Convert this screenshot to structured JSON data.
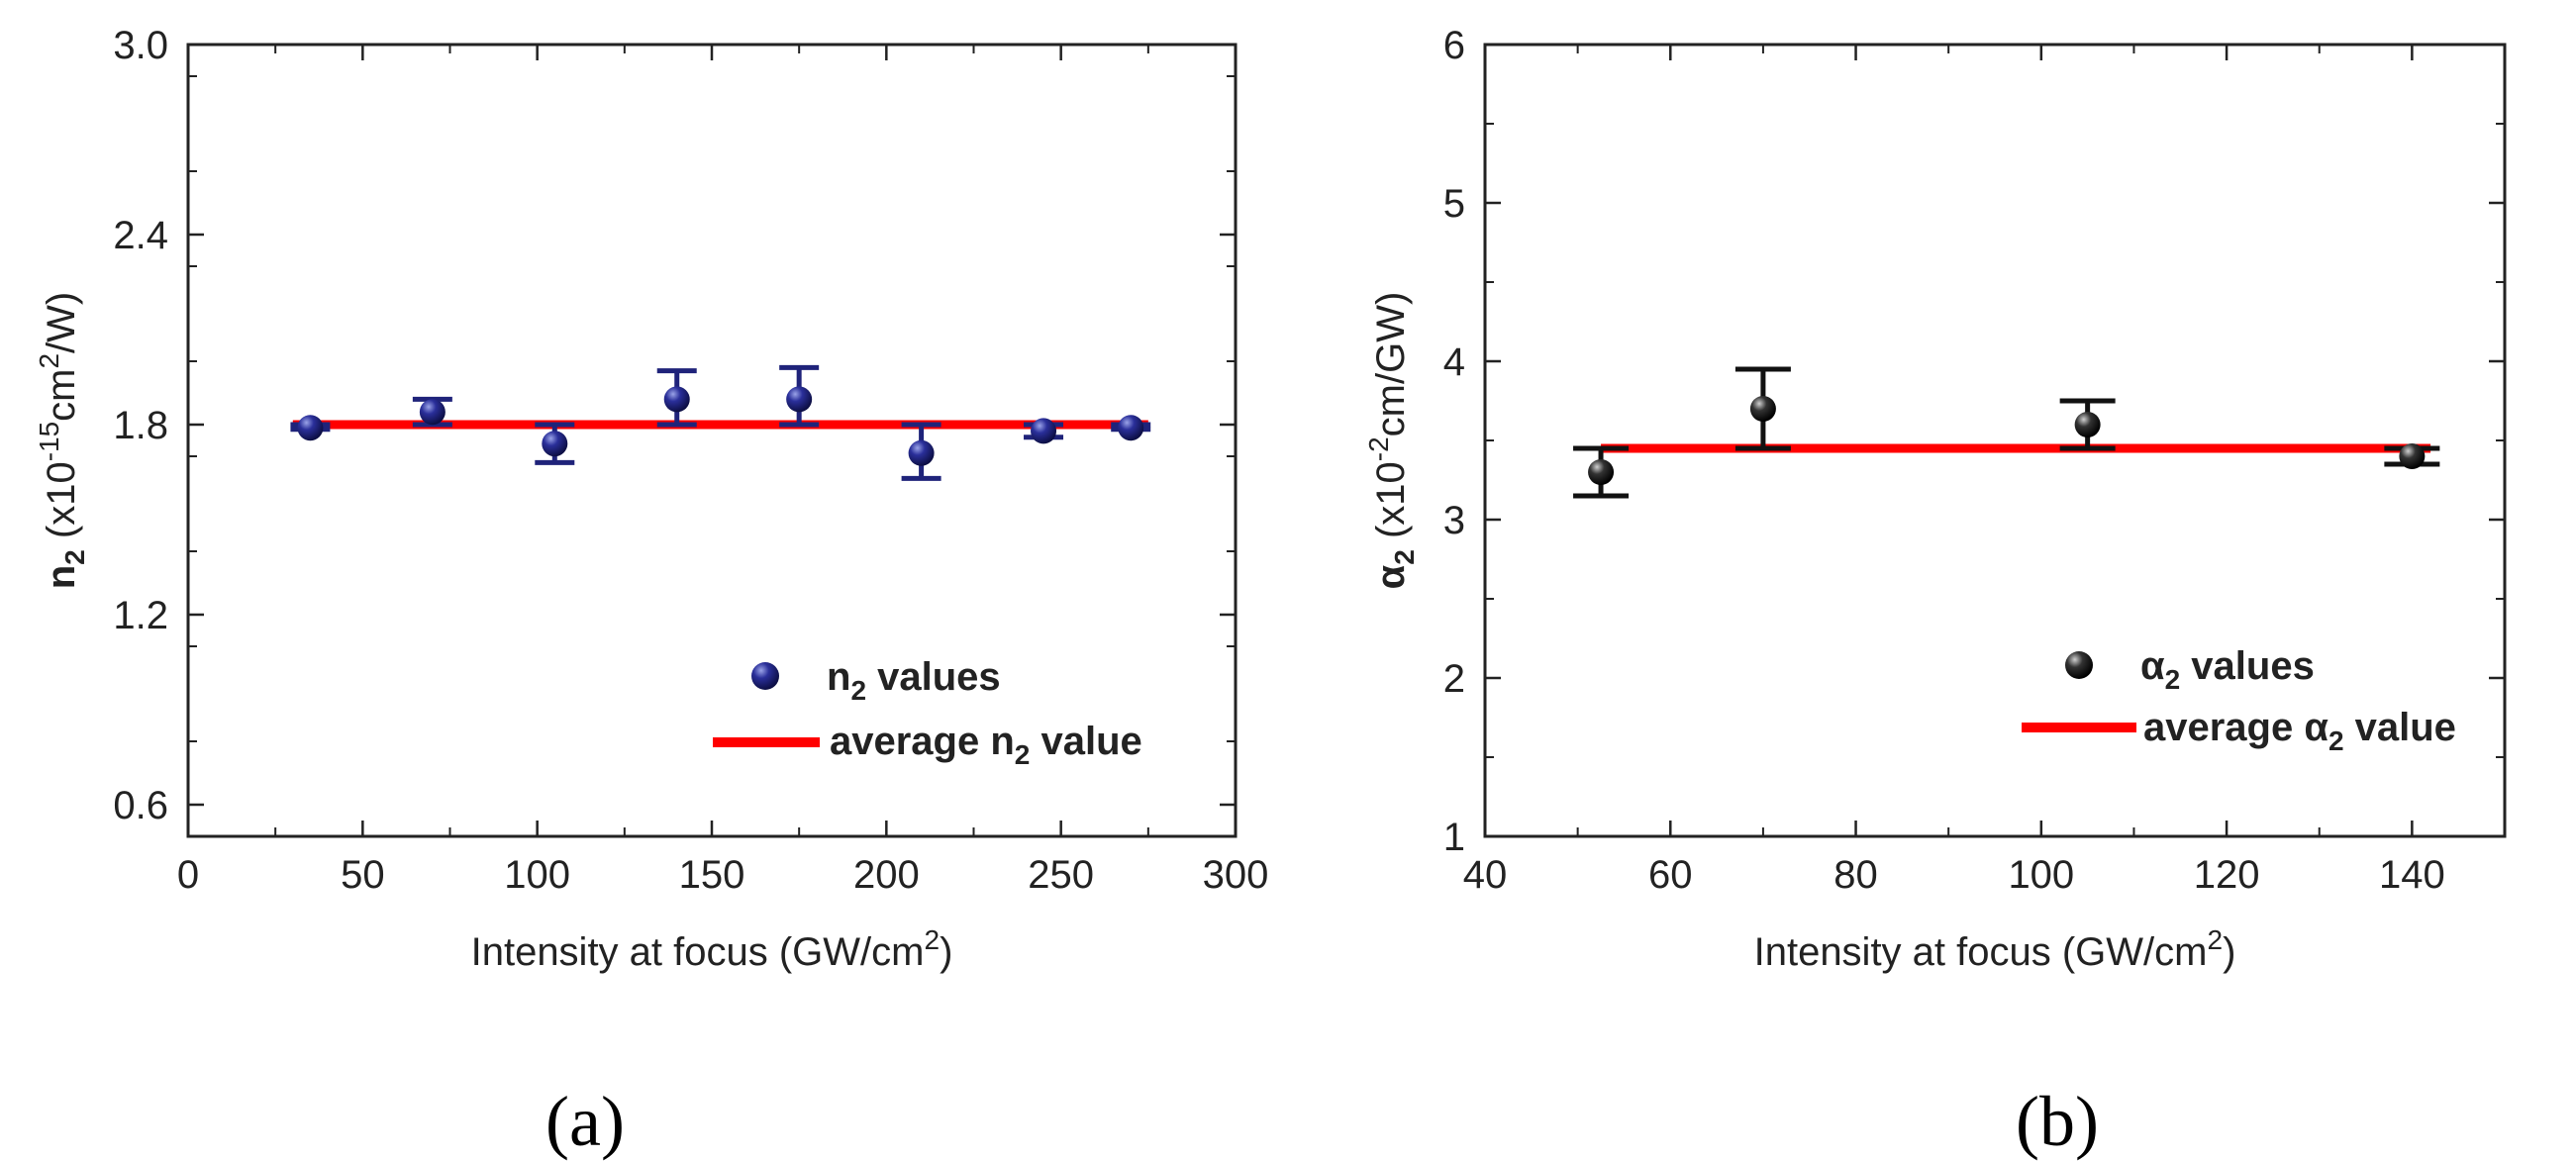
{
  "chart_data": [
    {
      "type": "scatter",
      "panel_label": "(a)",
      "xlabel": {
        "main": "Intensity at focus (GW/cm",
        "sup": "2",
        "end": ")"
      },
      "ylabel": {
        "sym": "n",
        "sub": "2",
        "open": " (x10",
        "sup1": "-15",
        "mid": "cm",
        "sup2": "2",
        "end": "/W)"
      },
      "xlim": [
        0,
        300
      ],
      "ylim": [
        0.5,
        3.0
      ],
      "xticks": [
        0,
        50,
        100,
        150,
        200,
        250,
        300
      ],
      "xtick_labels": [
        "0",
        "50",
        "100",
        "150",
        "200",
        "250",
        "300"
      ],
      "yticks": [
        0.6,
        1.2,
        1.8,
        2.4,
        3.0
      ],
      "ytick_labels": [
        "0.6",
        "1.2",
        "1.8",
        "2.4",
        "3.0"
      ],
      "series": [
        {
          "name": "n2 values",
          "legend": {
            "sym": "n",
            "sub": "2",
            "rest": " values"
          },
          "color": "#1f237a",
          "x": [
            35,
            70,
            105,
            140,
            175,
            210,
            245,
            270
          ],
          "y": [
            1.79,
            1.84,
            1.74,
            1.88,
            1.88,
            1.71,
            1.78,
            1.79
          ],
          "err_low": [
            1.785,
            1.8,
            1.68,
            1.8,
            1.8,
            1.63,
            1.76,
            1.785
          ],
          "err_high": [
            1.8,
            1.88,
            1.8,
            1.97,
            1.98,
            1.8,
            1.8,
            1.8
          ]
        },
        {
          "name": "average n2 value",
          "legend": {
            "pre": "average ",
            "sym": "n",
            "sub": "2",
            "rest": " value"
          },
          "color": "#ff0000",
          "type": "line",
          "x": [
            30,
            275
          ],
          "y": [
            1.8,
            1.8
          ]
        }
      ],
      "legend_position": "bottom-right"
    },
    {
      "type": "scatter",
      "panel_label": "(b)",
      "xlabel": {
        "main": "Intensity at focus (GW/cm",
        "sup": "2",
        "end": ")"
      },
      "ylabel": {
        "sym": "α",
        "sub": "2",
        "open": " (x10",
        "sup1": "-2",
        "mid": "cm/GW)",
        "sup2": "",
        "end": ""
      },
      "xlim": [
        40,
        150
      ],
      "ylim": [
        1,
        6
      ],
      "xticks": [
        40,
        60,
        80,
        100,
        120,
        140
      ],
      "xtick_labels": [
        "40",
        "60",
        "80",
        "100",
        "120",
        "140"
      ],
      "yticks": [
        1,
        2,
        3,
        4,
        5,
        6
      ],
      "ytick_labels": [
        "1",
        "2",
        "3",
        "4",
        "5",
        "6"
      ],
      "series": [
        {
          "name": "α2 values",
          "legend": {
            "sym": "α",
            "sub": "2",
            "rest": " values"
          },
          "color": "#111111",
          "x": [
            52.5,
            70,
            105,
            140
          ],
          "y": [
            3.3,
            3.7,
            3.6,
            3.4
          ],
          "err_low": [
            3.15,
            3.45,
            3.45,
            3.35
          ],
          "err_high": [
            3.45,
            3.95,
            3.75,
            3.45
          ]
        },
        {
          "name": "average α2 value",
          "legend": {
            "pre": "average ",
            "sym": "α",
            "sub": "2",
            "rest": " value"
          },
          "color": "#ff0000",
          "type": "line",
          "x": [
            52.5,
            142
          ],
          "y": [
            3.45,
            3.45
          ]
        }
      ],
      "legend_position": "bottom-right"
    }
  ]
}
